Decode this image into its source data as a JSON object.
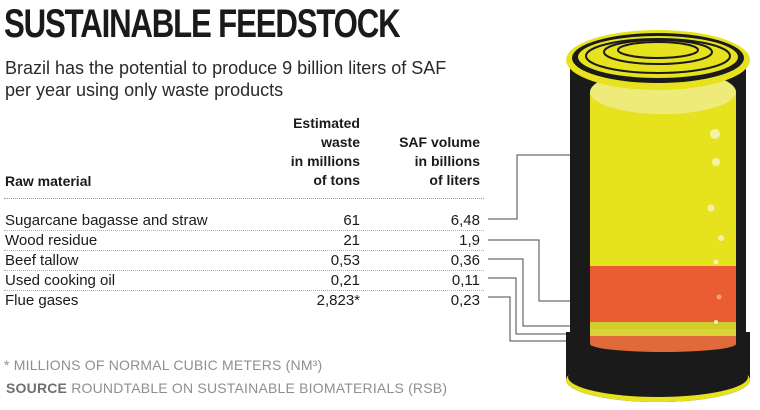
{
  "title": "SUSTAINABLE FEEDSTOCK",
  "subtitle": "Brazil has the potential to produce 9 billion liters of SAF per year using only waste products",
  "table": {
    "headers": {
      "raw_material": "Raw material",
      "waste_lines": [
        "Estimated",
        "waste",
        "in millions",
        "of tons"
      ],
      "saf_lines": [
        "SAF volume",
        "in billions",
        "of liters"
      ]
    },
    "rows": [
      {
        "name": "Sugarcane bagasse and straw",
        "waste": "61",
        "saf": "6,48"
      },
      {
        "name": "Wood residue",
        "waste": "21",
        "saf": "1,9"
      },
      {
        "name": "Beef tallow",
        "waste": "0,53",
        "saf": "0,36"
      },
      {
        "name": "Used cooking oil",
        "waste": "0,21",
        "saf": "0,11"
      },
      {
        "name": "Flue gases",
        "waste": "2,823*",
        "saf": "0,23"
      }
    ]
  },
  "footnote": "* MILLIONS OF NORMAL CUBIC METERS (NM³)",
  "source": {
    "label": "SOURCE",
    "text": " ROUNDTABLE ON SUSTAINABLE BIOMATERIALS (RSB)"
  },
  "colors": {
    "sugarcane": "#e6e21e",
    "wood": "#ea5d33",
    "beef_tallow": "#cfcd2a",
    "cooking_oil": "#d9d43a",
    "flue_gases": "#e06a3a",
    "can_body": "#1a1a1a",
    "can_rim": "#e6e21e",
    "leader_line": "#4a4a4a"
  }
}
